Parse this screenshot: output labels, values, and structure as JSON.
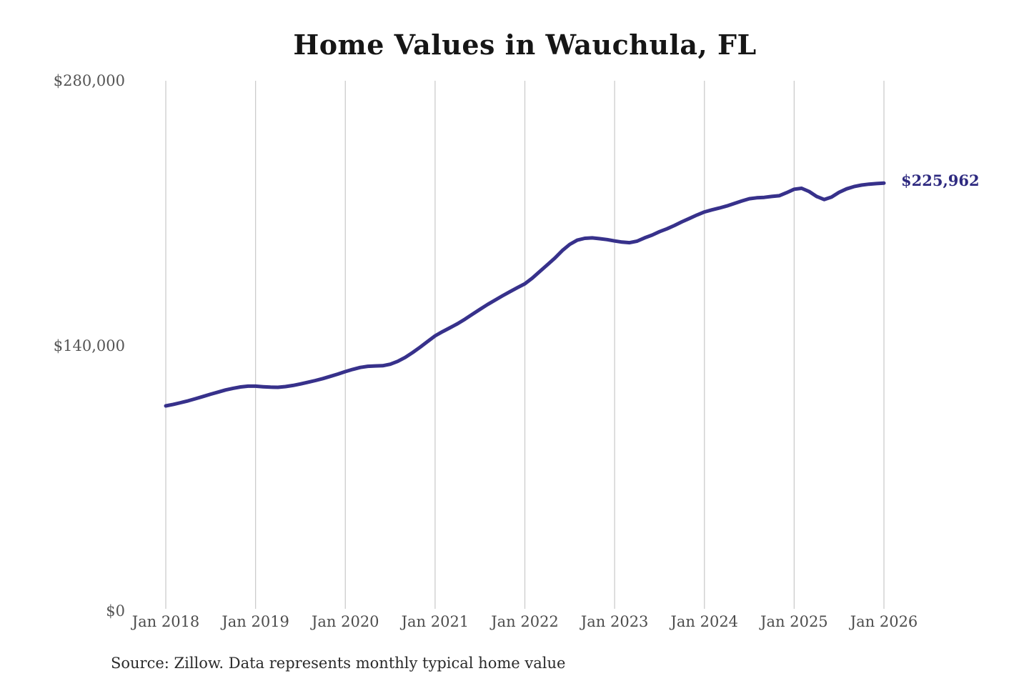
{
  "page": {
    "background": "#ffffff"
  },
  "chart_data": {
    "type": "line",
    "title": "Home Values in Wauchula, FL",
    "source_note": "Source: Zillow. Data represents monthly typical home value",
    "xlabel": "",
    "ylabel": "",
    "legend_position": "none",
    "grid": "vertical-only",
    "ylim": [
      0,
      280000
    ],
    "x_tick_labels": [
      "Jan 2018",
      "Jan 2019",
      "Jan 2020",
      "Jan 2021",
      "Jan 2022",
      "Jan 2023",
      "Jan 2024",
      "Jan 2025",
      "Jan 2026"
    ],
    "y_ticks": [
      {
        "value": 0,
        "label": "$0"
      },
      {
        "value": 140000,
        "label": "$140,000"
      },
      {
        "value": 280000,
        "label": "$280,000"
      }
    ],
    "latest_value": 225962,
    "end_label": "$225,962",
    "series": [
      {
        "name": "Typical home value",
        "start": "2018-01",
        "end": "2026-01",
        "frequency": "monthly",
        "values": [
          108300,
          109100,
          110000,
          111000,
          112100,
          113300,
          114500,
          115600,
          116700,
          117600,
          118300,
          118700,
          118700,
          118400,
          118200,
          118100,
          118500,
          119100,
          119900,
          120800,
          121700,
          122700,
          123900,
          125100,
          126400,
          127600,
          128600,
          129200,
          129400,
          129500,
          130300,
          131800,
          133900,
          136500,
          139300,
          142300,
          145300,
          147500,
          149600,
          151700,
          154100,
          156700,
          159300,
          161800,
          164100,
          166400,
          168600,
          170700,
          172800,
          175800,
          179300,
          182800,
          186300,
          190300,
          193600,
          195800,
          196800,
          197000,
          196600,
          196100,
          195400,
          194800,
          194500,
          195300,
          197000,
          198500,
          200300,
          201800,
          203600,
          205500,
          207300,
          209100,
          210700,
          211800,
          212800,
          213900,
          215200,
          216500,
          217700,
          218200,
          218400,
          218900,
          219300,
          220900,
          222700,
          223200,
          221500,
          218900,
          217300,
          218600,
          221100,
          222900,
          224100,
          224900,
          225400,
          225700,
          225962
        ]
      }
    ],
    "colors": {
      "line": "#37318b",
      "end_label": "#2e2a80",
      "grid": "#cccccc",
      "title": "#161616",
      "tick_label": "#555555",
      "source": "#2b2b2b"
    }
  }
}
